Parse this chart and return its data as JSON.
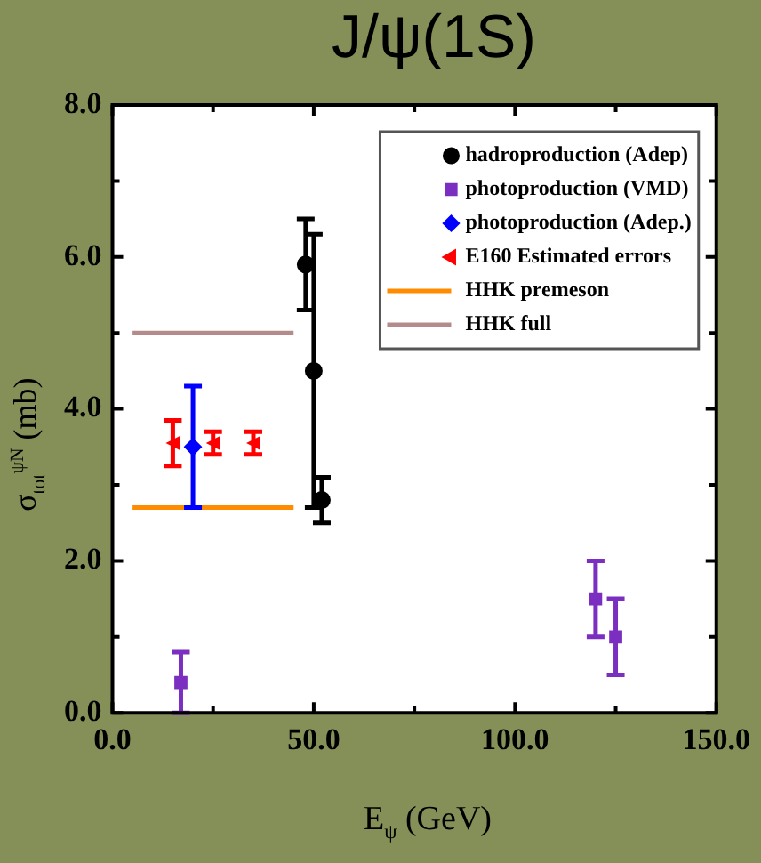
{
  "chart_data": {
    "type": "scatter",
    "title": "J/ψ(1S)",
    "xlabel": "E$_{ψ}$ (GeV)",
    "ylabel": "σ$_{tot}$$^{ψN}$ (mb)",
    "xlim": [
      0,
      150
    ],
    "ylim": [
      0,
      8
    ],
    "xticks": [
      {
        "value": 0,
        "label": "0.0"
      },
      {
        "value": 25,
        "label": null
      },
      {
        "value": 50,
        "label": "50.0"
      },
      {
        "value": 75,
        "label": null
      },
      {
        "value": 100,
        "label": "100.0"
      },
      {
        "value": 125,
        "label": null
      },
      {
        "value": 150,
        "label": "150.0"
      }
    ],
    "yticks": [
      {
        "value": 0,
        "label": "0.0"
      },
      {
        "value": 1,
        "label": null
      },
      {
        "value": 2,
        "label": "2.0"
      },
      {
        "value": 3,
        "label": null
      },
      {
        "value": 4,
        "label": "4.0"
      },
      {
        "value": 5,
        "label": null
      },
      {
        "value": 6,
        "label": "6.0"
      },
      {
        "value": 7,
        "label": null
      },
      {
        "value": 8,
        "label": "8.0"
      }
    ],
    "grid": false,
    "legend": "top right",
    "series": [
      {
        "name": "hadroproduction (Adep)",
        "color": "#000000",
        "marker": "circle",
        "x": [
          48,
          50,
          52
        ],
        "values": [
          5.9,
          4.5,
          2.8
        ],
        "errors": [
          [
            5.3,
            6.5
          ],
          [
            2.7,
            6.3
          ],
          [
            2.5,
            3.1
          ]
        ]
      },
      {
        "name": "photoproduction (VMD)",
        "color": "#7b2fc0",
        "marker": "square",
        "x": [
          17,
          120,
          125
        ],
        "values": [
          0.4,
          1.5,
          1.0
        ],
        "errors": [
          [
            0,
            0.8
          ],
          [
            1.0,
            2.0
          ],
          [
            0.5,
            1.5
          ]
        ]
      },
      {
        "name": "photoproduction (Adep.)",
        "color": "#0000ff",
        "marker": "diamond",
        "x": [
          20
        ],
        "values": [
          3.5
        ],
        "errors": [
          [
            2.7,
            4.3
          ]
        ]
      },
      {
        "name": "E160 Estimated errors",
        "color": "#ff0000",
        "marker": "triangle",
        "x": [
          15,
          25,
          35
        ],
        "values": [
          3.55,
          3.55,
          3.55
        ],
        "errors": [
          [
            3.25,
            3.85
          ],
          [
            3.4,
            3.7
          ],
          [
            3.4,
            3.7
          ]
        ]
      },
      {
        "name": "HHK premeson",
        "type": "line",
        "color": "#ff8c00",
        "marker": "none",
        "x": [
          5,
          45
        ],
        "values": [
          2.7,
          2.7
        ]
      },
      {
        "name": "HHK full",
        "type": "line",
        "color": "#b58a8a",
        "marker": "none",
        "x": [
          5,
          45
        ],
        "values": [
          5.0,
          5.0
        ]
      }
    ]
  }
}
